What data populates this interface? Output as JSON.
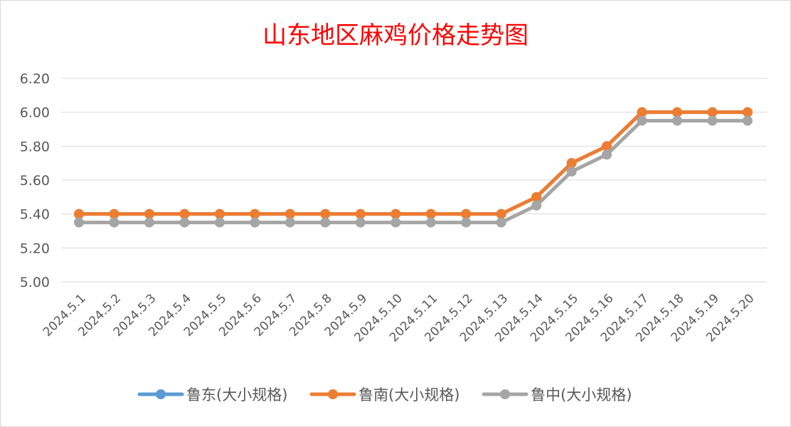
{
  "chart_data": {
    "type": "line",
    "title": "山东地区麻鸡价格走势图",
    "title_color": "#ff0000",
    "x": [
      "2024.5.1",
      "2024.5.2",
      "2024.5.3",
      "2024.5.4",
      "2024.5.5",
      "2024.5.6",
      "2024.5.7",
      "2024.5.8",
      "2024.5.9",
      "2024.5.10",
      "2024.5.11",
      "2024.5.12",
      "2024.5.13",
      "2024.5.14",
      "2024.5.15",
      "2024.5.16",
      "2024.5.17",
      "2024.5.18",
      "2024.5.19",
      "2024.5.20"
    ],
    "y_ticks": [
      "5.00",
      "5.20",
      "5.40",
      "5.60",
      "5.80",
      "6.00",
      "6.20"
    ],
    "ylim": [
      5.0,
      6.2
    ],
    "grid": true,
    "legend_position": "bottom",
    "series": [
      {
        "name": "鲁东(大小规格)",
        "color": "#5b9bd5",
        "values": [
          5.4,
          5.4,
          5.4,
          5.4,
          5.4,
          5.4,
          5.4,
          5.4,
          5.4,
          5.4,
          5.4,
          5.4,
          5.4,
          5.5,
          5.7,
          5.8,
          6.0,
          6.0,
          6.0,
          6.0
        ]
      },
      {
        "name": "鲁南(大小规格)",
        "color": "#ed7d31",
        "values": [
          5.4,
          5.4,
          5.4,
          5.4,
          5.4,
          5.4,
          5.4,
          5.4,
          5.4,
          5.4,
          5.4,
          5.4,
          5.4,
          5.5,
          5.7,
          5.8,
          6.0,
          6.0,
          6.0,
          6.0
        ]
      },
      {
        "name": "鲁中(大小规格)",
        "color": "#a5a5a5",
        "values": [
          5.35,
          5.35,
          5.35,
          5.35,
          5.35,
          5.35,
          5.35,
          5.35,
          5.35,
          5.35,
          5.35,
          5.35,
          5.35,
          5.45,
          5.65,
          5.75,
          5.95,
          5.95,
          5.95,
          5.95
        ]
      }
    ]
  }
}
